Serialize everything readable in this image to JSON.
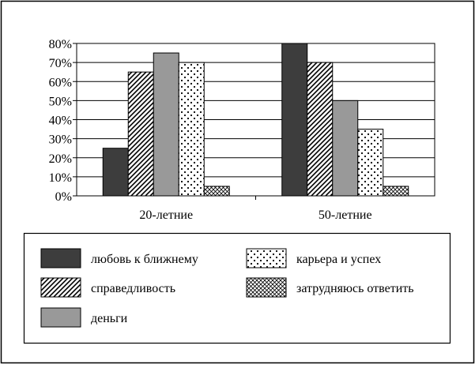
{
  "chart_data": {
    "type": "bar",
    "categories": [
      "20-летние",
      "50-летние"
    ],
    "series": [
      {
        "name": "любовь к ближнему",
        "values": [
          25,
          80
        ],
        "fill": "dark",
        "color": "#3d3d3d"
      },
      {
        "name": "справедливость",
        "values": [
          65,
          70
        ],
        "fill": "diagonal-lines"
      },
      {
        "name": "деньги",
        "values": [
          75,
          50
        ],
        "fill": "gray",
        "color": "#999999"
      },
      {
        "name": "карьера и успех",
        "values": [
          70,
          35
        ],
        "fill": "dots"
      },
      {
        "name": "затрудняюсь ответить",
        "values": [
          5,
          5
        ],
        "fill": "crosshatch"
      }
    ],
    "ylim": [
      0,
      80
    ],
    "yticks": [
      0,
      10,
      20,
      30,
      40,
      50,
      60,
      70,
      80
    ],
    "ytick_suffix": "%",
    "grid": "horizontal",
    "legend_position": "bottom",
    "title": "",
    "xlabel": "",
    "ylabel": ""
  }
}
